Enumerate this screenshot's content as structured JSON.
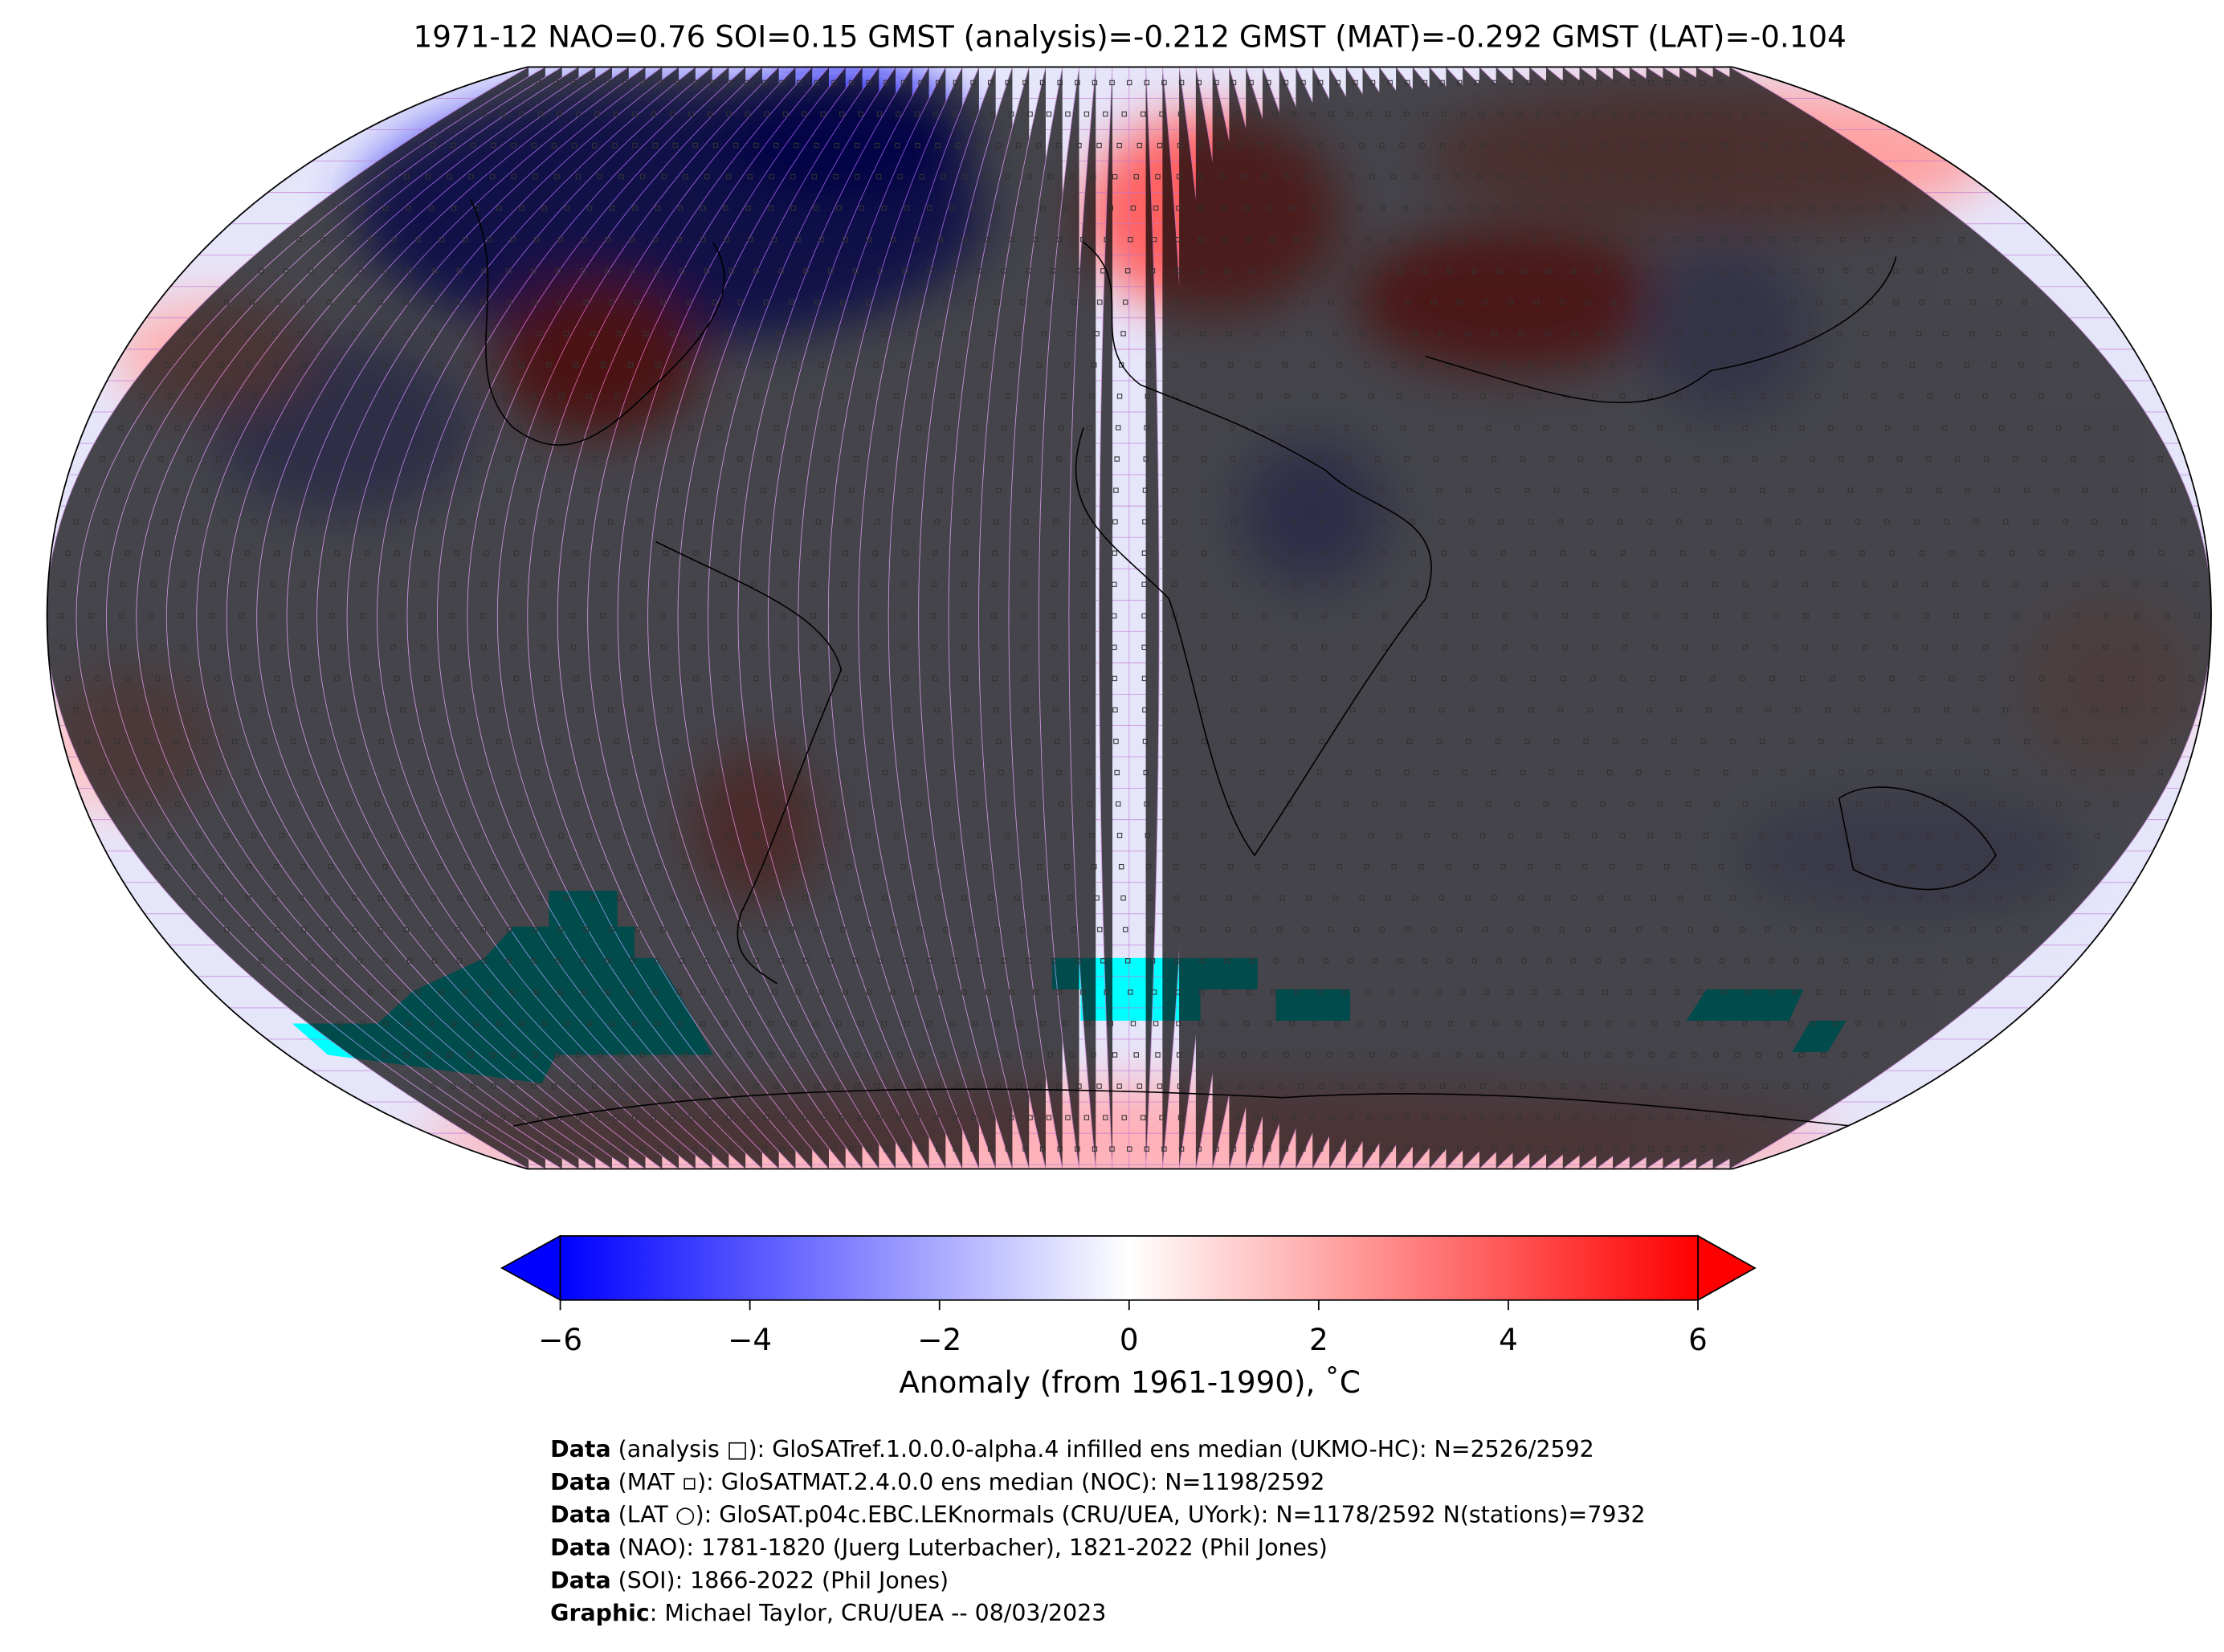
{
  "title": "1971-12 NAO=0.76 SOI=0.15 GMST (analysis)=-0.212 GMST (MAT)=-0.292 GMST (LAT)=-0.104",
  "colorbar": {
    "label": "Anomaly (from 1961-1990), ˚C",
    "ticks": [
      "−6",
      "−4",
      "−2",
      "0",
      "2",
      "4",
      "6"
    ],
    "tick_values": [
      -6,
      -4,
      -2,
      0,
      2,
      4,
      6
    ],
    "range": [
      -6,
      6
    ],
    "colors": {
      "low": "#0000ff",
      "mid": "#ffffff",
      "high": "#ff0000",
      "missing": "#00ffff"
    }
  },
  "footer": [
    {
      "bold": "Data",
      "text": " (analysis □): GloSATref.1.0.0.0-alpha.4 infilled ens median (UKMO-HC): N=2526/2592"
    },
    {
      "bold": "Data",
      "text": " (MAT ▫): GloSATMAT.2.4.0.0 ens median (NOC): N=1198/2592"
    },
    {
      "bold": "Data",
      "text": " (LAT ○): GloSAT.p04c.EBC.LEKnormals (CRU/UEA, UYork): N=1178/2592 N(stations)=7932"
    },
    {
      "bold": "Data",
      "text": " (NAO): 1781-1820 (Juerg Luterbacher), 1821-2022 (Phil Jones)"
    },
    {
      "bold": "Data",
      "text": " (SOI): 1866-2022 (Phil Jones)"
    },
    {
      "bold": "Graphic",
      "text": ": Michael Taylor, CRU/UEA -- 08/03/2023"
    }
  ]
}
